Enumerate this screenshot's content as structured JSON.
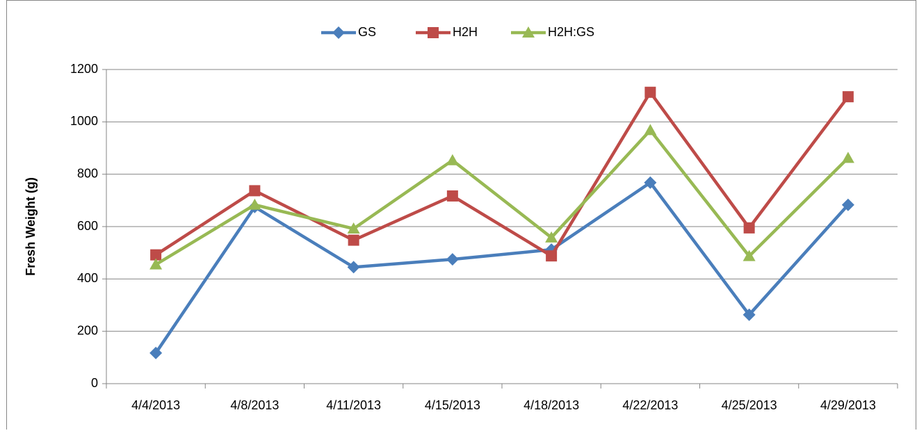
{
  "chart_data": {
    "type": "line",
    "y_label": "Fresh Weight (g)",
    "categories": [
      "4/4/2013",
      "4/8/2013",
      "4/11/2013",
      "4/15/2013",
      "4/18/2013",
      "4/22/2013",
      "4/25/2013",
      "4/29/2013"
    ],
    "series": [
      {
        "name": "GS",
        "color": "#4a7ebb",
        "marker": "diamond",
        "values": [
          117,
          675,
          445,
          475,
          512,
          768,
          263,
          683
        ]
      },
      {
        "name": "H2H",
        "color": "#be4b48",
        "marker": "square",
        "values": [
          492,
          737,
          548,
          717,
          488,
          1113,
          595,
          1096
        ]
      },
      {
        "name": "H2H:GS",
        "color": "#98b954",
        "marker": "triangle",
        "values": [
          455,
          683,
          592,
          853,
          558,
          968,
          487,
          862
        ]
      }
    ],
    "ylim": [
      0,
      1200
    ],
    "yticks": [
      0,
      200,
      400,
      600,
      800,
      1000,
      1200
    ],
    "grid": true,
    "legend": "top"
  }
}
